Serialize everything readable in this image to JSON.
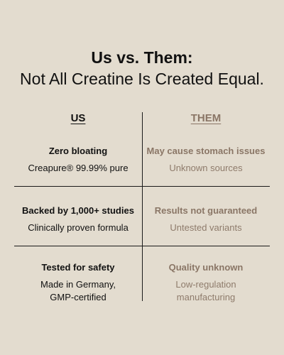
{
  "title": {
    "line1": "Us vs. Them:",
    "line2": "Not All Creatine Is Created Equal."
  },
  "columns": {
    "us": "US",
    "them": "THEM"
  },
  "rows": [
    {
      "us_title": "Zero bloating",
      "us_sub": "Creapure® 99.99% pure",
      "them_title": "May cause stomach issues",
      "them_sub": "Unknown sources"
    },
    {
      "us_title": "Backed by 1,000+ studies",
      "us_sub": "Clinically proven formula",
      "them_title": "Results not guaranteed",
      "them_sub": "Untested variants"
    },
    {
      "us_title": "Tested for safety",
      "us_sub": "Made in Germany,\nGMP-certified",
      "them_title": "Quality unknown",
      "them_sub": "Low-regulation\nmanufacturing"
    }
  ],
  "colors": {
    "background": "#e3dccf",
    "us_text": "#111111",
    "them_text": "#8a7666",
    "divider": "#1a1a1a"
  }
}
